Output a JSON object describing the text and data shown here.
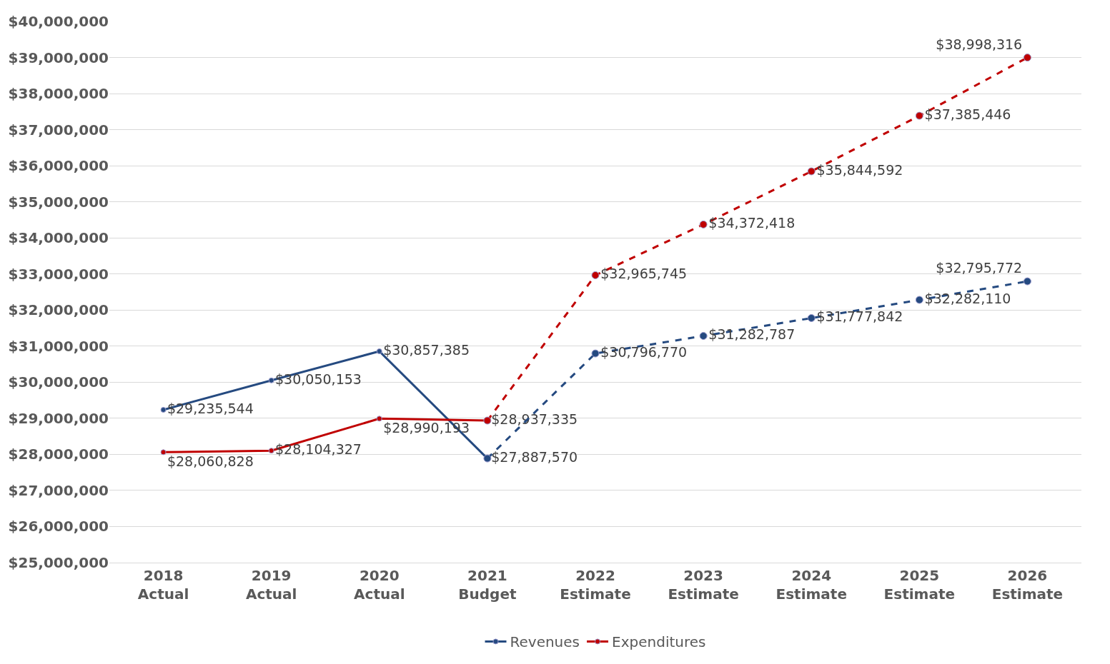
{
  "chart_data": {
    "type": "line",
    "categories": [
      "2018\nActual",
      "2019\nActual",
      "2020\nActual",
      "2021\nBudget",
      "2022\nEstimate",
      "2023\nEstimate",
      "2024\nEstimate",
      "2025\nEstimate",
      "2026\nEstimate"
    ],
    "series": [
      {
        "name": "Revenues",
        "color": "#254a80",
        "line_style": "solid",
        "values": [
          29235544,
          30050153,
          30857385,
          27887570,
          null,
          null,
          null,
          null,
          null
        ],
        "value_labels": [
          "$29,235,544",
          "$30,050,153",
          "$30,857,385",
          "$27,887,570",
          null,
          null,
          null,
          null,
          null
        ]
      },
      {
        "name": "Expenditures",
        "color": "#c00000",
        "line_style": "solid",
        "values": [
          28060828,
          28104327,
          28990193,
          28937335,
          null,
          null,
          null,
          null,
          null
        ],
        "value_labels": [
          "$28,060,828",
          "$28,104,327",
          "$28,990,193",
          "$28,937,335",
          null,
          null,
          null,
          null,
          null
        ]
      },
      {
        "color": "#254a80",
        "line_style": "dashed",
        "values": [
          null,
          null,
          null,
          27887570,
          30796770,
          31282787,
          31777842,
          32282110,
          32795772
        ],
        "value_labels": [
          null,
          null,
          null,
          null,
          "$30,796,770",
          "$31,282,787",
          "$31,777,842",
          "$32,282,110",
          "$32,795,772"
        ]
      },
      {
        "color": "#c00000",
        "line_style": "dashed",
        "values": [
          null,
          null,
          null,
          28937335,
          32965745,
          34372418,
          35844592,
          37385446,
          38998316
        ],
        "value_labels": [
          null,
          null,
          null,
          null,
          "$32,965,745",
          "$34,372,418",
          "$35,844,592",
          "$37,385,446",
          "$38,998,316"
        ]
      }
    ],
    "ylim": [
      25000000,
      40000000
    ],
    "yticks": [
      {
        "value": 25000000,
        "label": "$25,000,000"
      },
      {
        "value": 26000000,
        "label": "$26,000,000"
      },
      {
        "value": 27000000,
        "label": "$27,000,000"
      },
      {
        "value": 28000000,
        "label": "$28,000,000"
      },
      {
        "value": 29000000,
        "label": "$29,000,000"
      },
      {
        "value": 30000000,
        "label": "$30,000,000"
      },
      {
        "value": 31000000,
        "label": "$31,000,000"
      },
      {
        "value": 32000000,
        "label": "$32,000,000"
      },
      {
        "value": 33000000,
        "label": "$33,000,000"
      },
      {
        "value": 34000000,
        "label": "$34,000,000"
      },
      {
        "value": 35000000,
        "label": "$35,000,000"
      },
      {
        "value": 36000000,
        "label": "$36,000,000"
      },
      {
        "value": 37000000,
        "label": "$37,000,000"
      },
      {
        "value": 38000000,
        "label": "$38,000,000"
      },
      {
        "value": 39000000,
        "label": "$39,000,000"
      },
      {
        "value": 40000000,
        "label": "$40,000,000"
      }
    ],
    "grid": "y",
    "legend": "bottom",
    "marker": "circle"
  }
}
